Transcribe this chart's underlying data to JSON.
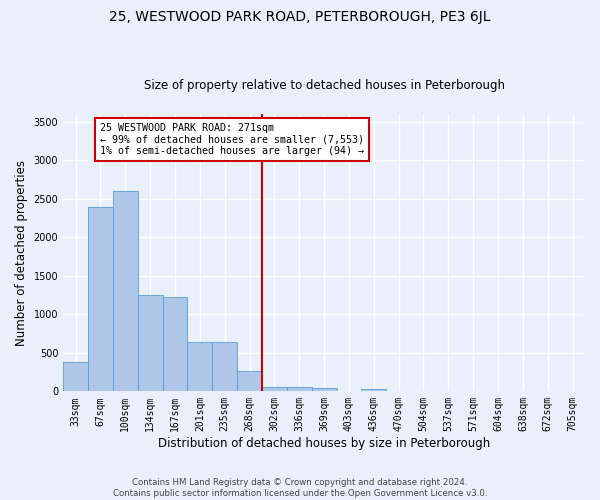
{
  "title": "25, WESTWOOD PARK ROAD, PETERBOROUGH, PE3 6JL",
  "subtitle": "Size of property relative to detached houses in Peterborough",
  "xlabel": "Distribution of detached houses by size in Peterborough",
  "ylabel": "Number of detached properties",
  "footer_line1": "Contains HM Land Registry data © Crown copyright and database right 2024.",
  "footer_line2": "Contains public sector information licensed under the Open Government Licence v3.0.",
  "bar_labels": [
    "33sqm",
    "67sqm",
    "100sqm",
    "134sqm",
    "167sqm",
    "201sqm",
    "235sqm",
    "268sqm",
    "302sqm",
    "336sqm",
    "369sqm",
    "403sqm",
    "436sqm",
    "470sqm",
    "504sqm",
    "537sqm",
    "571sqm",
    "604sqm",
    "638sqm",
    "672sqm",
    "705sqm"
  ],
  "bar_values": [
    380,
    2390,
    2600,
    1250,
    1230,
    640,
    640,
    260,
    55,
    55,
    40,
    0,
    30,
    0,
    0,
    0,
    0,
    0,
    0,
    0,
    0
  ],
  "bar_color": "#aec6e8",
  "bar_edge_color": "#5b9bd5",
  "vline_color": "#cc0000",
  "annotation_text": "25 WESTWOOD PARK ROAD: 271sqm\n← 99% of detached houses are smaller (7,553)\n1% of semi-detached houses are larger (94) →",
  "annotation_box_color": "#ffffff",
  "annotation_box_edge": "#cc0000",
  "ylim": [
    0,
    3600
  ],
  "yticks": [
    0,
    500,
    1000,
    1500,
    2000,
    2500,
    3000,
    3500
  ],
  "bg_color": "#eaf0fb",
  "axes_bg_color": "#eaf0fb",
  "grid_color": "#ffffff",
  "title_fontsize": 10,
  "subtitle_fontsize": 8.5,
  "tick_fontsize": 7,
  "label_fontsize": 8.5,
  "footer_fontsize": 6.2
}
